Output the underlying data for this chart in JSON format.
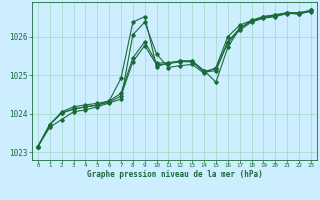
{
  "title": "Graphe pression niveau de la mer (hPa)",
  "bg_color": "#cceeff",
  "grid_color": "#aaddcc",
  "line_color": "#1a6b3a",
  "xlim": [
    -0.5,
    23.5
  ],
  "ylim": [
    1022.8,
    1026.9
  ],
  "yticks": [
    1023,
    1024,
    1025,
    1026
  ],
  "xticks": [
    0,
    1,
    2,
    3,
    4,
    5,
    6,
    7,
    8,
    9,
    10,
    11,
    12,
    13,
    14,
    15,
    16,
    17,
    18,
    19,
    20,
    21,
    22,
    23
  ],
  "series": [
    [
      1023.15,
      1023.65,
      1023.85,
      1024.05,
      1024.1,
      1024.18,
      1024.28,
      1024.38,
      1026.05,
      1026.38,
      1025.55,
      1025.2,
      1025.25,
      1025.28,
      1025.05,
      1025.2,
      1026.0,
      1026.3,
      1026.42,
      1026.52,
      1026.56,
      1026.62,
      1026.58,
      1026.68
    ],
    [
      1023.15,
      1023.72,
      1024.02,
      1024.12,
      1024.18,
      1024.22,
      1024.33,
      1024.92,
      1026.38,
      1026.52,
      1025.22,
      1025.32,
      1025.37,
      1025.37,
      1025.12,
      1024.82,
      1025.72,
      1026.22,
      1026.42,
      1026.52,
      1026.57,
      1026.62,
      1026.62,
      1026.68
    ],
    [
      1023.15,
      1023.72,
      1024.05,
      1024.18,
      1024.23,
      1024.27,
      1024.33,
      1024.53,
      1025.45,
      1025.87,
      1025.32,
      1025.32,
      1025.37,
      1025.37,
      1025.1,
      1025.17,
      1025.87,
      1026.22,
      1026.4,
      1026.5,
      1026.54,
      1026.62,
      1026.62,
      1026.68
    ],
    [
      1023.15,
      1023.72,
      1024.02,
      1024.12,
      1024.18,
      1024.23,
      1024.3,
      1024.46,
      1025.35,
      1025.77,
      1025.27,
      1025.3,
      1025.35,
      1025.35,
      1025.08,
      1025.12,
      1025.84,
      1026.17,
      1026.38,
      1026.48,
      1026.52,
      1026.6,
      1026.6,
      1026.65
    ]
  ]
}
